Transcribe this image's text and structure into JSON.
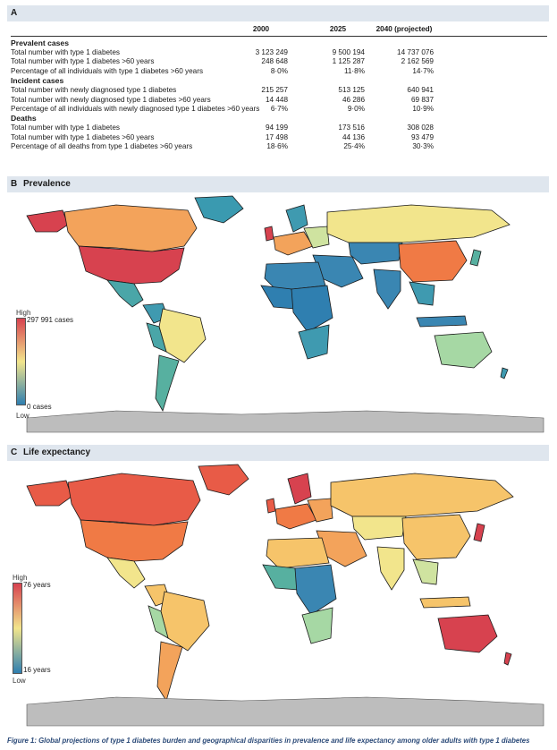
{
  "panel_a": {
    "label": "A",
    "columns": [
      "2000",
      "2025",
      "2040 (projected)"
    ],
    "sections": [
      {
        "title": "Prevalent cases",
        "rows": [
          {
            "label": "Total number with type 1 diabetes",
            "v": [
              "3 123 249",
              "9 500 194",
              "14 737 076"
            ]
          },
          {
            "label": "Total number with type 1 diabetes >60 years",
            "v": [
              "248 648",
              "1 125 287",
              "2 162 569"
            ]
          },
          {
            "label": "Percentage of all individuals with type 1 diabetes >60 years",
            "v": [
              "8·0%",
              "11·8%",
              "14·7%"
            ]
          }
        ]
      },
      {
        "title": "Incident cases",
        "rows": [
          {
            "label": "Total number with newly diagnosed type 1 diabetes",
            "v": [
              "215 257",
              "513 125",
              "640 941"
            ]
          },
          {
            "label": "Total number with newly diagnosed type 1 diabetes >60 years",
            "v": [
              "14 448",
              "46 286",
              "69 837"
            ]
          },
          {
            "label": "Percentage of all individuals with newly diagnosed type 1 diabetes >60 years",
            "v": [
              "6·7%",
              "9·0%",
              "10·9%"
            ]
          }
        ]
      },
      {
        "title": "Deaths",
        "rows": [
          {
            "label": "Total number with type 1 diabetes",
            "v": [
              "94 199",
              "173 516",
              "308 028"
            ]
          },
          {
            "label": "Total number with type 1 diabetes >60 years",
            "v": [
              "17 498",
              "44 136",
              "93 479"
            ]
          },
          {
            "label": "Percentage of all deaths from type 1 diabetes >60 years",
            "v": [
              "18·6%",
              "25·4%",
              "30·3%"
            ]
          }
        ]
      }
    ]
  },
  "panel_b": {
    "label": "B",
    "title": "Prevalence",
    "legend": {
      "high": "High",
      "max": "297 991 cases",
      "min": "0 cases",
      "low": "Low"
    }
  },
  "panel_c": {
    "label": "C",
    "title": "Life expectancy",
    "legend": {
      "high": "High",
      "max": "76 years",
      "min": "16 years",
      "low": "Low"
    }
  },
  "colors": {
    "header_band": "#dfe6ee",
    "scale_high": "#d7424f",
    "scale_mid": "#f2e58c",
    "scale_low": "#2f7fb0",
    "antarctica": "#bdbdbd",
    "caption": "#2b4a78"
  },
  "caption": "Figure 1: Global projections of type 1 diabetes burden and geographical disparities in prevalence and life expectancy among older adults with type 1 diabetes"
}
